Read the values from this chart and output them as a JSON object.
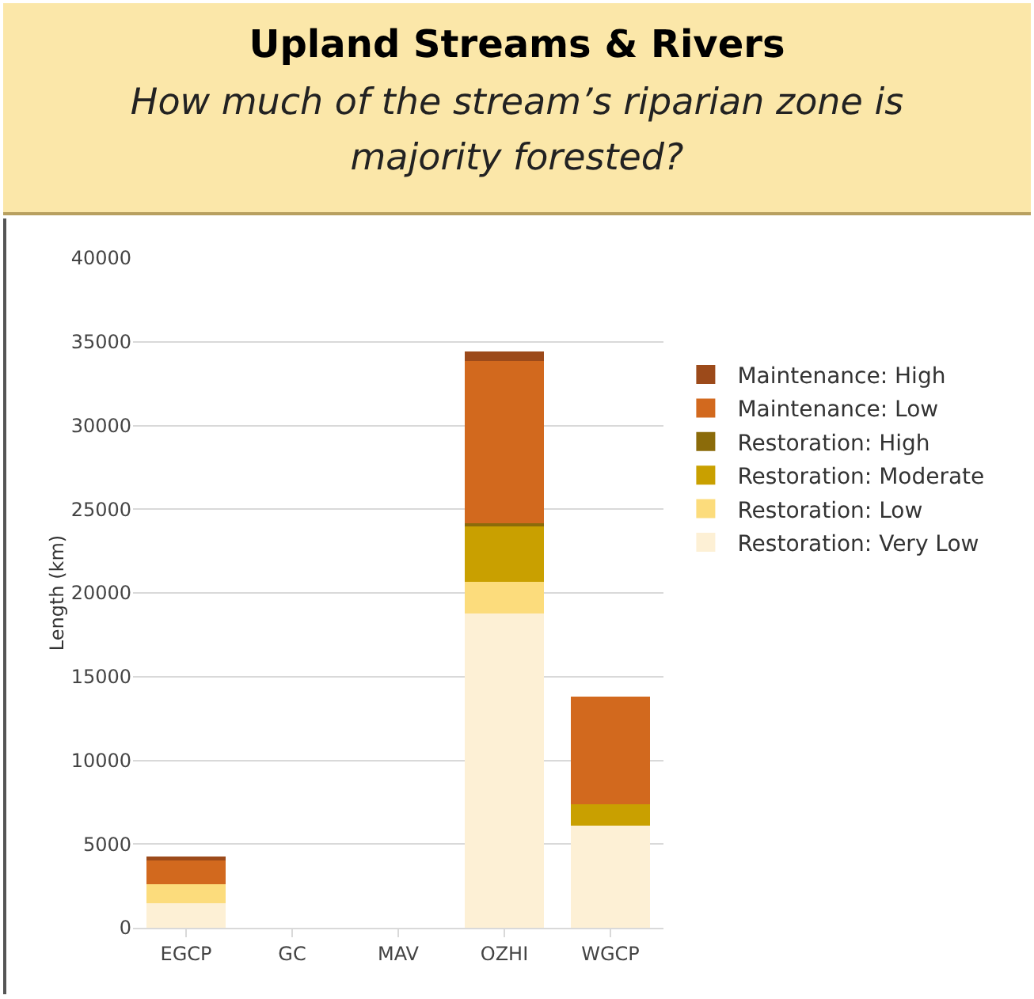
{
  "chart_data": {
    "type": "bar",
    "title": "Upland Streams & Rivers",
    "subtitle": "How much of the stream’s riparian zone is majority forested?",
    "ylabel": "Length (km)",
    "categories": [
      "EGCP",
      "GC",
      "MAV",
      "OZHI",
      "WGCP"
    ],
    "stacked": true,
    "series": [
      {
        "name": "Restoration: Very Low",
        "color": "#fdf0d5",
        "values": [
          1450,
          0,
          0,
          18750,
          6100
        ]
      },
      {
        "name": "Restoration: Low",
        "color": "#fcdc7c",
        "values": [
          1150,
          0,
          0,
          1900,
          0
        ]
      },
      {
        "name": "Restoration: Moderate",
        "color": "#c9a000",
        "values": [
          0,
          0,
          0,
          3300,
          1300
        ]
      },
      {
        "name": "Restoration: High",
        "color": "#8b6b0a",
        "values": [
          0,
          0,
          0,
          200,
          0
        ]
      },
      {
        "name": "Maintenance: Low",
        "color": "#d2691e",
        "values": [
          1400,
          0,
          0,
          9700,
          6400
        ]
      },
      {
        "name": "Maintenance: High",
        "color": "#9c4a1a",
        "values": [
          250,
          0,
          0,
          550,
          0
        ]
      }
    ],
    "ylim": [
      0,
      40000
    ],
    "yticks": [
      0,
      5000,
      10000,
      15000,
      20000,
      25000,
      30000,
      35000,
      40000
    ],
    "grid": "y",
    "legend": "right"
  }
}
